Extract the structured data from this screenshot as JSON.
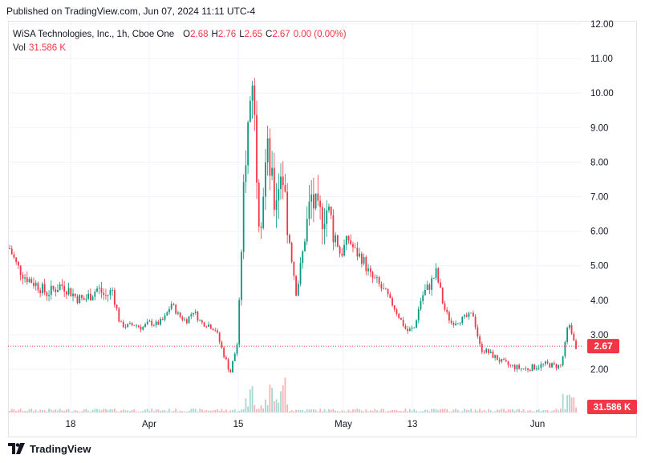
{
  "header": {
    "published": "Published on TradingView.com, Jun 07, 2024 11:11 UTC-4"
  },
  "legend": {
    "symbol": "WiSA Technologies, Inc., 1h, Cboe One",
    "o_label": "O",
    "o_value": "2.68",
    "h_label": "H",
    "h_value": "2.76",
    "l_label": "L",
    "l_value": "2.65",
    "c_label": "C",
    "c_value": "2.67",
    "change": "0.00 (0.00%)",
    "vol_label": "Vol",
    "vol_value": "31.586 K"
  },
  "footer": {
    "brand": "TradingView"
  },
  "colors": {
    "up": "#089981",
    "down": "#f23645",
    "up_vol": "#a8d8d0",
    "down_vol": "#f7b3b8",
    "grid": "#f0f3fa"
  },
  "chart_data": {
    "type": "candlestick",
    "y_axis": {
      "ticks": [
        "12.00",
        "11.00",
        "10.00",
        "9.00",
        "8.00",
        "7.00",
        "6.00",
        "5.00",
        "4.00",
        "3.00",
        "2.00"
      ],
      "ylim": [
        1.2,
        12.3
      ]
    },
    "x_axis": {
      "ticks": [
        "18",
        "Apr",
        "15",
        "May",
        "13",
        "Jun"
      ]
    },
    "last_price": "2.67",
    "last_volume": "31.586 K",
    "close_path": [
      5.5,
      5.0,
      4.7,
      4.55,
      4.4,
      4.2,
      4.3,
      4.45,
      4.3,
      4.1,
      4.0,
      4.15,
      4.35,
      4.1,
      4.3,
      3.3,
      3.25,
      3.3,
      3.2,
      3.35,
      3.3,
      3.45,
      3.9,
      3.55,
      3.4,
      3.7,
      3.35,
      3.3,
      3.15,
      2.5,
      1.9,
      2.8,
      8.0,
      10.5,
      6.2,
      8.4,
      6.8,
      7.9,
      5.8,
      4.2,
      5.6,
      7.0,
      6.3,
      6.7,
      6.1,
      5.3,
      5.8,
      5.4,
      5.2,
      4.7,
      4.5,
      4.2,
      3.9,
      3.5,
      3.1,
      3.2,
      4.1,
      4.4,
      4.8,
      3.8,
      3.35,
      3.4,
      3.5,
      3.6,
      2.6,
      2.5,
      2.35,
      2.2,
      2.1,
      2.05,
      2.0,
      2.05,
      2.1,
      2.15,
      2.1,
      2.1,
      3.4,
      2.67
    ]
  }
}
